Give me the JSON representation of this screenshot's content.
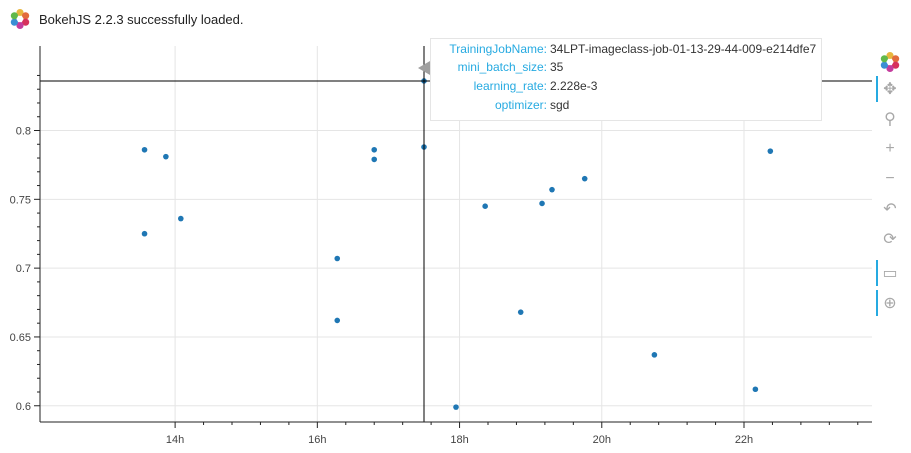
{
  "banner": {
    "message": "BokehJS 2.2.3 successfully loaded."
  },
  "colors": {
    "points": "#1f77b4",
    "accent": "#26aae1",
    "grid": "#e5e5e5",
    "crosshair": "#000000"
  },
  "toolbar": {
    "logo": "bokeh-logo",
    "tools": [
      {
        "name": "pan-tool",
        "icon": "move-arrows-icon",
        "glyph": "✥",
        "active": true
      },
      {
        "name": "box-zoom-tool",
        "icon": "box-zoom-icon",
        "glyph": "⚲",
        "active": false
      },
      {
        "name": "zoom-in-tool",
        "icon": "zoom-in-icon",
        "glyph": "+",
        "active": false
      },
      {
        "name": "zoom-out-tool",
        "icon": "zoom-out-icon",
        "glyph": "−",
        "active": false
      },
      {
        "name": "undo-tool",
        "icon": "undo-icon",
        "glyph": "↶",
        "active": false
      },
      {
        "name": "reset-tool",
        "icon": "reset-icon",
        "glyph": "⟳",
        "active": false
      },
      {
        "name": "hover-tool",
        "icon": "hover-tooltip-icon",
        "glyph": "▭",
        "active": true
      },
      {
        "name": "crosshair-tool",
        "icon": "crosshair-icon",
        "glyph": "⊕",
        "active": true
      }
    ]
  },
  "tooltip": {
    "rows": [
      {
        "key": "TrainingJobName:",
        "value": "34LPT-imageclass-job-01-13-29-44-009-e214dfe7"
      },
      {
        "key": "mini_batch_size:",
        "value": "35"
      },
      {
        "key": "learning_rate:",
        "value": "2.228e-3"
      },
      {
        "key": "optimizer:",
        "value": "sgd"
      }
    ]
  },
  "chart_data": {
    "type": "scatter",
    "title": "",
    "xlabel": "",
    "ylabel": "",
    "x_unit": "hours",
    "xlim": [
      12.1,
      23.8
    ],
    "ylim": [
      0.5882,
      0.8614
    ],
    "x_ticks": [
      {
        "value": 14,
        "label": "14h"
      },
      {
        "value": 16,
        "label": "16h"
      },
      {
        "value": 18,
        "label": "18h"
      },
      {
        "value": 20,
        "label": "20h"
      },
      {
        "value": 22,
        "label": "22h"
      }
    ],
    "y_ticks": [
      {
        "value": 0.6,
        "label": "0.6"
      },
      {
        "value": 0.65,
        "label": "0.65"
      },
      {
        "value": 0.7,
        "label": "0.7"
      },
      {
        "value": 0.75,
        "label": "0.75"
      },
      {
        "value": 0.8,
        "label": "0.8"
      }
    ],
    "grid": true,
    "crosshair": {
      "x": 17.5,
      "y": 0.836
    },
    "points": [
      {
        "x": 13.57,
        "y": 0.786
      },
      {
        "x": 13.57,
        "y": 0.725
      },
      {
        "x": 13.87,
        "y": 0.781
      },
      {
        "x": 14.08,
        "y": 0.736
      },
      {
        "x": 16.28,
        "y": 0.707
      },
      {
        "x": 16.28,
        "y": 0.662
      },
      {
        "x": 16.8,
        "y": 0.786
      },
      {
        "x": 16.8,
        "y": 0.779
      },
      {
        "x": 17.5,
        "y": 0.788
      },
      {
        "x": 17.5,
        "y": 0.836
      },
      {
        "x": 17.95,
        "y": 0.599
      },
      {
        "x": 18.36,
        "y": 0.745
      },
      {
        "x": 18.86,
        "y": 0.668
      },
      {
        "x": 19.16,
        "y": 0.747
      },
      {
        "x": 19.3,
        "y": 0.757
      },
      {
        "x": 19.76,
        "y": 0.765
      },
      {
        "x": 20.58,
        "y": 0.815
      },
      {
        "x": 20.74,
        "y": 0.637
      },
      {
        "x": 21.59,
        "y": 0.814
      },
      {
        "x": 22.16,
        "y": 0.612
      },
      {
        "x": 22.37,
        "y": 0.785
      }
    ]
  }
}
